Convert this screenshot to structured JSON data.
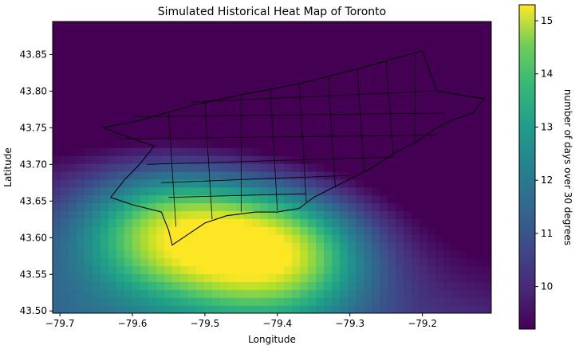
{
  "chart_data": {
    "type": "heatmap",
    "title": "Simulated Historical Heat Map of Toronto",
    "xlabel": "Longitude",
    "ylabel": "Latitude",
    "xlim": [
      -79.71,
      -79.105
    ],
    "ylim": [
      43.497,
      43.895
    ],
    "x_ticks": [
      -79.7,
      -79.6,
      -79.5,
      -79.4,
      -79.3,
      -79.2
    ],
    "x_tick_labels": [
      "−79.7",
      "−79.6",
      "−79.5",
      "−79.4",
      "−79.3",
      "−79.2"
    ],
    "y_ticks": [
      43.5,
      43.55,
      43.6,
      43.65,
      43.7,
      43.75,
      43.8,
      43.85
    ],
    "y_tick_labels": [
      "43.50",
      "43.55",
      "43.60",
      "43.65",
      "43.70",
      "43.75",
      "43.80",
      "43.85"
    ],
    "grid": false,
    "colorbar": {
      "label": "number of days over 30 degrees",
      "min": 9.2,
      "max": 15.3,
      "ticks": [
        10,
        11,
        12,
        13,
        14,
        15
      ],
      "tick_labels": [
        "10",
        "11",
        "12",
        "13",
        "14",
        "15"
      ],
      "colormap": "viridis"
    },
    "heat_peaks": [
      {
        "lon": -79.4,
        "lat": 43.58,
        "value": 15.2
      },
      {
        "lon": -79.55,
        "lat": 43.61,
        "value": 14.6
      }
    ],
    "heat_lows": [
      {
        "lon": -79.1,
        "lat": 43.89,
        "value": 9.2
      },
      {
        "lon": -79.7,
        "lat": 43.89,
        "value": 10.0
      }
    ],
    "overlay": "city ward boundaries",
    "boundary_outline": [
      [
        -79.64,
        43.75
      ],
      [
        -79.59,
        43.76
      ],
      [
        -79.52,
        43.78
      ],
      [
        -79.45,
        43.795
      ],
      [
        -79.37,
        43.81
      ],
      [
        -79.29,
        43.83
      ],
      [
        -79.2,
        43.855
      ],
      [
        -79.18,
        43.8
      ],
      [
        -79.15,
        43.795
      ],
      [
        -79.115,
        43.79
      ],
      [
        -79.13,
        43.77
      ],
      [
        -79.16,
        43.76
      ],
      [
        -79.18,
        43.75
      ],
      [
        -79.21,
        43.73
      ],
      [
        -79.24,
        43.715
      ],
      [
        -79.27,
        43.695
      ],
      [
        -79.32,
        43.67
      ],
      [
        -79.35,
        43.655
      ],
      [
        -79.37,
        43.64
      ],
      [
        -79.4,
        43.635
      ],
      [
        -79.43,
        43.635
      ],
      [
        -79.47,
        43.63
      ],
      [
        -79.5,
        43.62
      ],
      [
        -79.53,
        43.6
      ],
      [
        -79.545,
        43.59
      ],
      [
        -79.55,
        43.61
      ],
      [
        -79.56,
        43.635
      ],
      [
        -79.6,
        43.645
      ],
      [
        -79.63,
        43.655
      ],
      [
        -79.61,
        43.68
      ],
      [
        -79.59,
        43.7
      ],
      [
        -79.57,
        43.725
      ],
      [
        -79.6,
        43.735
      ],
      [
        -79.64,
        43.75
      ]
    ],
    "inner_boundaries": [
      [
        [
          -79.62,
          43.735
        ],
        [
          -79.18,
          43.74
        ]
      ],
      [
        [
          -79.58,
          43.7
        ],
        [
          -79.24,
          43.71
        ]
      ],
      [
        [
          -79.56,
          43.675
        ],
        [
          -79.3,
          43.685
        ]
      ],
      [
        [
          -79.55,
          43.655
        ],
        [
          -79.36,
          43.66
        ]
      ],
      [
        [
          -79.6,
          43.765
        ],
        [
          -79.17,
          43.77
        ]
      ],
      [
        [
          -79.52,
          43.785
        ],
        [
          -79.19,
          43.8
        ]
      ],
      [
        [
          -79.55,
          43.77
        ],
        [
          -79.54,
          43.615
        ]
      ],
      [
        [
          -79.5,
          43.785
        ],
        [
          -79.49,
          43.625
        ]
      ],
      [
        [
          -79.45,
          43.795
        ],
        [
          -79.45,
          43.635
        ]
      ],
      [
        [
          -79.41,
          43.805
        ],
        [
          -79.4,
          43.637
        ]
      ],
      [
        [
          -79.37,
          43.81
        ],
        [
          -79.36,
          43.648
        ]
      ],
      [
        [
          -79.33,
          43.82
        ],
        [
          -79.32,
          43.668
        ]
      ],
      [
        [
          -79.29,
          43.83
        ],
        [
          -79.28,
          43.69
        ]
      ],
      [
        [
          -79.25,
          43.84
        ],
        [
          -79.24,
          43.712
        ]
      ],
      [
        [
          -79.21,
          43.85
        ],
        [
          -79.21,
          43.73
        ]
      ]
    ]
  }
}
